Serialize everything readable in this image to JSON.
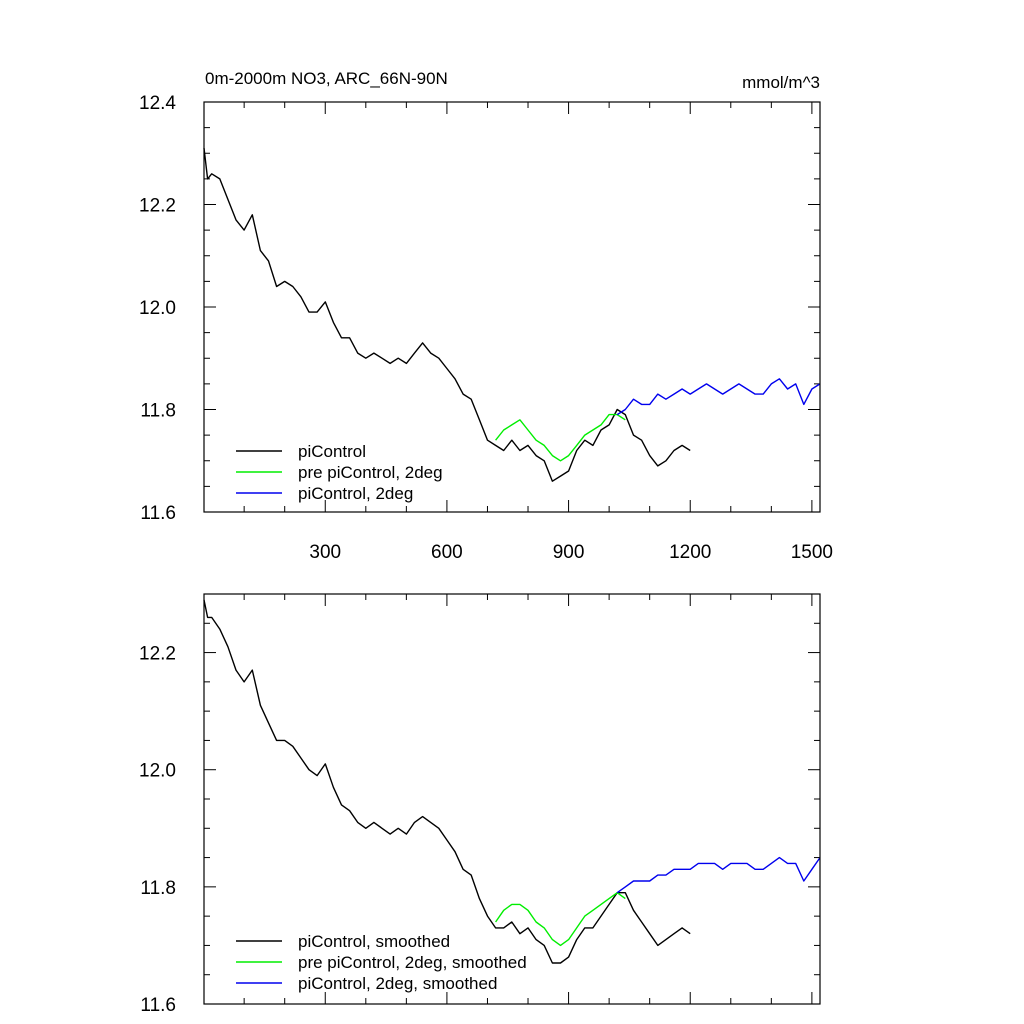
{
  "chart_data": [
    {
      "type": "line",
      "title": "0m-2000m NO3, ARC_66N-90N",
      "units_label": "mmol/m^3",
      "xlim": [
        1,
        1520
      ],
      "ylim": [
        11.6,
        12.4
      ],
      "x_ticks": [
        300,
        600,
        900,
        1200,
        1500
      ],
      "y_ticks": [
        11.6,
        11.8,
        12.0,
        12.2,
        12.4
      ],
      "y_tick_labels": [
        "11.6",
        "11.8",
        "12.0",
        "12.2",
        "12.4"
      ],
      "x_tick_labels": [
        "300",
        "600",
        "900",
        "1200",
        "1500"
      ],
      "legend_position": "bottom-left",
      "series": [
        {
          "name": "piControl",
          "color": "#000000",
          "x": [
            1,
            10,
            20,
            40,
            60,
            80,
            100,
            120,
            140,
            160,
            180,
            200,
            220,
            240,
            260,
            280,
            300,
            320,
            340,
            360,
            380,
            400,
            420,
            440,
            460,
            480,
            500,
            520,
            540,
            560,
            580,
            600,
            620,
            640,
            660,
            680,
            700,
            720,
            740,
            760,
            780,
            800,
            820,
            840,
            860,
            880,
            900,
            920,
            940,
            960,
            980,
            1000,
            1020,
            1040,
            1060,
            1080,
            1100,
            1120,
            1140,
            1160,
            1180,
            1200
          ],
          "y": [
            12.31,
            12.25,
            12.26,
            12.25,
            12.21,
            12.17,
            12.15,
            12.18,
            12.11,
            12.09,
            12.04,
            12.05,
            12.04,
            12.02,
            11.99,
            11.99,
            12.01,
            11.97,
            11.94,
            11.94,
            11.91,
            11.9,
            11.91,
            11.9,
            11.89,
            11.9,
            11.89,
            11.91,
            11.93,
            11.91,
            11.9,
            11.88,
            11.86,
            11.83,
            11.82,
            11.78,
            11.74,
            11.73,
            11.72,
            11.74,
            11.72,
            11.73,
            11.71,
            11.7,
            11.66,
            11.67,
            11.68,
            11.72,
            11.74,
            11.73,
            11.76,
            11.77,
            11.8,
            11.79,
            11.75,
            11.74,
            11.71,
            11.69,
            11.7,
            11.72,
            11.73,
            11.72
          ]
        },
        {
          "name": "pre piControl, 2deg",
          "color": "#00ee00",
          "x": [
            720,
            740,
            760,
            780,
            800,
            820,
            840,
            860,
            880,
            900,
            920,
            940,
            960,
            980,
            1000,
            1020,
            1040
          ],
          "y": [
            11.74,
            11.76,
            11.77,
            11.78,
            11.76,
            11.74,
            11.73,
            11.71,
            11.7,
            11.71,
            11.73,
            11.75,
            11.76,
            11.77,
            11.79,
            11.79,
            11.78
          ]
        },
        {
          "name": "piControl, 2deg",
          "color": "#0000ee",
          "x": [
            1020,
            1040,
            1060,
            1080,
            1100,
            1120,
            1140,
            1160,
            1180,
            1200,
            1220,
            1240,
            1260,
            1280,
            1300,
            1320,
            1340,
            1360,
            1380,
            1400,
            1420,
            1440,
            1460,
            1480,
            1500,
            1520
          ],
          "y": [
            11.79,
            11.8,
            11.82,
            11.81,
            11.81,
            11.83,
            11.82,
            11.83,
            11.84,
            11.83,
            11.84,
            11.85,
            11.84,
            11.83,
            11.84,
            11.85,
            11.84,
            11.83,
            11.83,
            11.85,
            11.86,
            11.84,
            11.85,
            11.81,
            11.84,
            11.85
          ]
        }
      ]
    },
    {
      "type": "line",
      "xlim": [
        1,
        1520
      ],
      "ylim": [
        11.6,
        12.3
      ],
      "x_ticks": [
        300,
        600,
        900,
        1200,
        1500
      ],
      "y_ticks": [
        11.6,
        11.8,
        12.0,
        12.2
      ],
      "y_tick_labels": [
        "11.6",
        "11.8",
        "12.0",
        "12.2"
      ],
      "legend_position": "bottom-left",
      "series": [
        {
          "name": "piControl, smoothed",
          "color": "#000000",
          "x": [
            1,
            10,
            20,
            40,
            60,
            80,
            100,
            120,
            140,
            160,
            180,
            200,
            220,
            240,
            260,
            280,
            300,
            320,
            340,
            360,
            380,
            400,
            420,
            440,
            460,
            480,
            500,
            520,
            540,
            560,
            580,
            600,
            620,
            640,
            660,
            680,
            700,
            720,
            740,
            760,
            780,
            800,
            820,
            840,
            860,
            880,
            900,
            920,
            940,
            960,
            980,
            1000,
            1020,
            1040,
            1060,
            1080,
            1100,
            1120,
            1140,
            1160,
            1180,
            1200
          ],
          "y": [
            12.29,
            12.26,
            12.26,
            12.24,
            12.21,
            12.17,
            12.15,
            12.17,
            12.11,
            12.08,
            12.05,
            12.05,
            12.04,
            12.02,
            12.0,
            11.99,
            12.01,
            11.97,
            11.94,
            11.93,
            11.91,
            11.9,
            11.91,
            11.9,
            11.89,
            11.9,
            11.89,
            11.91,
            11.92,
            11.91,
            11.9,
            11.88,
            11.86,
            11.83,
            11.82,
            11.78,
            11.75,
            11.73,
            11.73,
            11.74,
            11.72,
            11.73,
            11.71,
            11.7,
            11.67,
            11.67,
            11.68,
            11.71,
            11.73,
            11.73,
            11.75,
            11.77,
            11.79,
            11.79,
            11.76,
            11.74,
            11.72,
            11.7,
            11.71,
            11.72,
            11.73,
            11.72
          ]
        },
        {
          "name": "pre piControl, 2deg, smoothed",
          "color": "#00ee00",
          "x": [
            720,
            740,
            760,
            780,
            800,
            820,
            840,
            860,
            880,
            900,
            920,
            940,
            960,
            980,
            1000,
            1020,
            1040
          ],
          "y": [
            11.74,
            11.76,
            11.77,
            11.77,
            11.76,
            11.74,
            11.73,
            11.71,
            11.7,
            11.71,
            11.73,
            11.75,
            11.76,
            11.77,
            11.78,
            11.79,
            11.78
          ]
        },
        {
          "name": "piControl, 2deg, smoothed",
          "color": "#0000ee",
          "x": [
            1020,
            1040,
            1060,
            1080,
            1100,
            1120,
            1140,
            1160,
            1180,
            1200,
            1220,
            1240,
            1260,
            1280,
            1300,
            1320,
            1340,
            1360,
            1380,
            1400,
            1420,
            1440,
            1460,
            1480,
            1500,
            1520
          ],
          "y": [
            11.79,
            11.8,
            11.81,
            11.81,
            11.81,
            11.82,
            11.82,
            11.83,
            11.83,
            11.83,
            11.84,
            11.84,
            11.84,
            11.83,
            11.84,
            11.84,
            11.84,
            11.83,
            11.83,
            11.84,
            11.85,
            11.84,
            11.84,
            11.81,
            11.83,
            11.85
          ]
        }
      ]
    }
  ]
}
